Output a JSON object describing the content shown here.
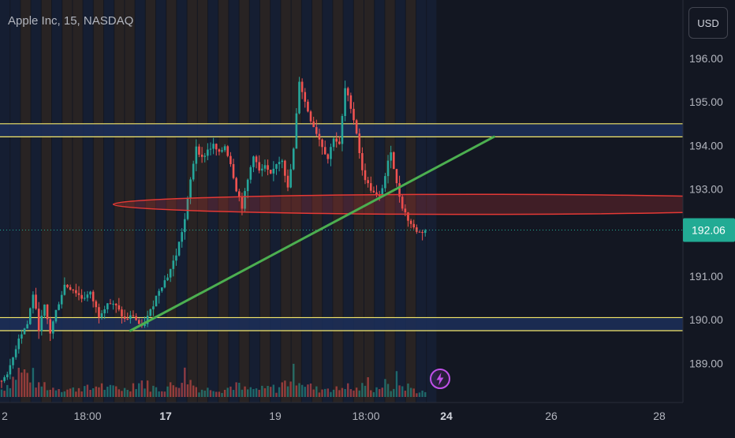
{
  "header": {
    "symbol_title": "Apple Inc, 15, NASDAQ"
  },
  "price_scale": {
    "currency_button": "USD",
    "ticks": [
      "196.00",
      "195.00",
      "194.00",
      "193.00",
      "191.00",
      "190.00",
      "189.00"
    ],
    "last_price_label": "192.06"
  },
  "time_axis": {
    "ticks": [
      {
        "label": "2",
        "bold": false
      },
      {
        "label": "18:00",
        "bold": false
      },
      {
        "label": "17",
        "bold": true
      },
      {
        "label": "19",
        "bold": false
      },
      {
        "label": "18:00",
        "bold": false
      },
      {
        "label": "24",
        "bold": true
      },
      {
        "label": "26",
        "bold": false
      },
      {
        "label": "28",
        "bold": false
      }
    ]
  },
  "colors": {
    "background": "#131722",
    "up_candle": "#26a69a",
    "down_candle": "#ef5350",
    "zone_fill": "#1c2d57",
    "zone_line": "#f5e86a",
    "trendline": "#4caf50",
    "ellipse_stroke": "#e53935",
    "last_price_badge": "#22ab94",
    "lightning_icon": "#c050e8"
  },
  "chart_data": {
    "type": "candlestick",
    "symbol": "Apple Inc",
    "interval": "15",
    "exchange": "NASDAQ",
    "currency": "USD",
    "ylim": [
      188.3,
      196.7
    ],
    "last_price": 192.06,
    "price_path": [
      [
        0,
        188.6
      ],
      [
        3,
        188.9
      ],
      [
        6,
        189.6
      ],
      [
        9,
        189.9
      ],
      [
        11,
        190.6
      ],
      [
        13,
        189.8
      ],
      [
        15,
        190.3
      ],
      [
        17,
        189.7
      ],
      [
        19,
        190.2
      ],
      [
        22,
        190.8
      ],
      [
        25,
        190.7
      ],
      [
        28,
        190.5
      ],
      [
        31,
        190.6
      ],
      [
        34,
        190.1
      ],
      [
        37,
        190.4
      ],
      [
        40,
        190.3
      ],
      [
        43,
        190.0
      ],
      [
        46,
        190.1
      ],
      [
        49,
        189.8
      ],
      [
        52,
        190.2
      ],
      [
        55,
        190.7
      ],
      [
        58,
        191.0
      ],
      [
        61,
        191.5
      ],
      [
        64,
        192.3
      ],
      [
        66,
        193.2
      ],
      [
        68,
        194.0
      ],
      [
        70,
        193.7
      ],
      [
        72,
        193.9
      ],
      [
        74,
        194.0
      ],
      [
        76,
        193.8
      ],
      [
        78,
        194.0
      ],
      [
        80,
        193.6
      ],
      [
        82,
        193.0
      ],
      [
        84,
        192.6
      ],
      [
        86,
        193.2
      ],
      [
        88,
        193.8
      ],
      [
        90,
        193.4
      ],
      [
        92,
        193.5
      ],
      [
        94,
        193.3
      ],
      [
        96,
        193.6
      ],
      [
        98,
        193.7
      ],
      [
        100,
        193.0
      ],
      [
        102,
        193.9
      ],
      [
        104,
        195.5
      ],
      [
        106,
        195.0
      ],
      [
        108,
        194.6
      ],
      [
        110,
        194.3
      ],
      [
        112,
        194.0
      ],
      [
        114,
        193.7
      ],
      [
        116,
        194.2
      ],
      [
        118,
        194.0
      ],
      [
        120,
        195.3
      ],
      [
        122,
        194.9
      ],
      [
        124,
        194.3
      ],
      [
        126,
        193.4
      ],
      [
        128,
        193.1
      ],
      [
        130,
        192.9
      ],
      [
        132,
        192.8
      ],
      [
        134,
        193.3
      ],
      [
        136,
        193.9
      ],
      [
        138,
        193.1
      ],
      [
        140,
        192.6
      ],
      [
        142,
        192.3
      ],
      [
        144,
        192.1
      ],
      [
        146,
        192.0
      ],
      [
        148,
        192.06
      ]
    ],
    "volume_profile": [
      [
        0,
        0.3
      ],
      [
        3,
        0.6
      ],
      [
        6,
        1.0
      ],
      [
        9,
        0.9
      ],
      [
        11,
        0.8
      ],
      [
        13,
        0.4
      ],
      [
        15,
        0.5
      ],
      [
        17,
        0.3
      ],
      [
        19,
        0.4
      ],
      [
        22,
        0.3
      ],
      [
        25,
        0.3
      ],
      [
        28,
        0.4
      ],
      [
        31,
        0.3
      ],
      [
        34,
        0.5
      ],
      [
        37,
        0.3
      ],
      [
        40,
        0.4
      ],
      [
        43,
        0.3
      ],
      [
        46,
        0.5
      ],
      [
        49,
        0.6
      ],
      [
        52,
        0.4
      ],
      [
        55,
        0.3
      ],
      [
        58,
        0.4
      ],
      [
        61,
        0.5
      ],
      [
        64,
        0.9
      ],
      [
        66,
        0.6
      ],
      [
        68,
        0.4
      ],
      [
        70,
        0.3
      ],
      [
        72,
        0.3
      ],
      [
        74,
        0.4
      ],
      [
        76,
        0.3
      ],
      [
        78,
        0.3
      ],
      [
        80,
        0.4
      ],
      [
        82,
        0.5
      ],
      [
        84,
        0.3
      ],
      [
        86,
        0.3
      ],
      [
        88,
        0.3
      ],
      [
        90,
        0.3
      ],
      [
        92,
        0.3
      ],
      [
        94,
        0.4
      ],
      [
        96,
        0.3
      ],
      [
        98,
        0.5
      ],
      [
        100,
        0.6
      ],
      [
        102,
        0.9
      ],
      [
        104,
        0.8
      ],
      [
        106,
        0.5
      ],
      [
        108,
        0.4
      ],
      [
        110,
        0.3
      ],
      [
        112,
        0.3
      ],
      [
        114,
        0.4
      ],
      [
        116,
        0.3
      ],
      [
        118,
        0.3
      ],
      [
        120,
        0.5
      ],
      [
        122,
        0.3
      ],
      [
        124,
        0.3
      ],
      [
        126,
        0.4
      ],
      [
        128,
        0.6
      ],
      [
        130,
        0.3
      ],
      [
        132,
        0.4
      ],
      [
        134,
        0.5
      ],
      [
        136,
        0.3
      ],
      [
        138,
        0.7
      ],
      [
        140,
        0.4
      ],
      [
        142,
        0.4
      ],
      [
        144,
        0.3
      ],
      [
        146,
        0.2
      ],
      [
        148,
        0.2
      ]
    ],
    "drawings": {
      "resistance_zone": [
        194.2,
        194.5
      ],
      "support_zone": [
        189.75,
        190.05
      ],
      "trendline": {
        "start": [
          45,
          189.75
        ],
        "end": [
          172,
          194.2
        ]
      },
      "ellipse": {
        "center": [
          165,
          192.65
        ],
        "half_width": 126,
        "price_half_height": 0.23
      }
    },
    "session_stripes": [
      "blue",
      "blue",
      "orange",
      "blue",
      "orange",
      "blue",
      "orange",
      "orange",
      "blue",
      "orange",
      "blue",
      "orange",
      "orange",
      "blue",
      "orange",
      "blue",
      "orange",
      "blue",
      "orange",
      "orange",
      "blue",
      "orange",
      "blue",
      "orange",
      "blue",
      "orange",
      "blue",
      "orange",
      "orange",
      "blue",
      "orange",
      "blue",
      "orange",
      "blue",
      "orange",
      "orange",
      "blue",
      "orange",
      "blue",
      "orange",
      "blue",
      "blue"
    ]
  }
}
